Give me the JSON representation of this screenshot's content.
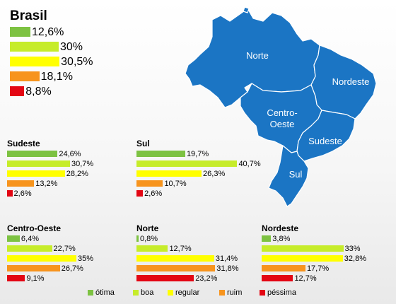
{
  "chart_data": [
    {
      "type": "bar",
      "title": "Brasil",
      "categories": [
        "ótima",
        "boa",
        "regular",
        "ruim",
        "péssima"
      ],
      "values": [
        12.6,
        30,
        30.5,
        18.1,
        8.8
      ],
      "labels": [
        "12,6%",
        "30%",
        "30,5%",
        "18,1%",
        "8,8%"
      ]
    },
    {
      "type": "bar",
      "title": "Sudeste",
      "categories": [
        "ótima",
        "boa",
        "regular",
        "ruim",
        "péssima"
      ],
      "values": [
        24.6,
        30.7,
        28.2,
        13.2,
        2.6
      ],
      "labels": [
        "24,6%",
        "30,7%",
        "28,2%",
        "13,2%",
        "2,6%"
      ]
    },
    {
      "type": "bar",
      "title": "Sul",
      "categories": [
        "ótima",
        "boa",
        "regular",
        "ruim",
        "péssima"
      ],
      "values": [
        19.7,
        40.7,
        26.3,
        10.7,
        2.6
      ],
      "labels": [
        "19,7%",
        "40,7%",
        "26,3%",
        "10,7%",
        "2,6%"
      ]
    },
    {
      "type": "bar",
      "title": "Centro-Oeste",
      "categories": [
        "ótima",
        "boa",
        "regular",
        "ruim",
        "péssima"
      ],
      "values": [
        6.4,
        22.7,
        35,
        26.7,
        9.1
      ],
      "labels": [
        "6,4%",
        "22,7%",
        "35%",
        "26,7%",
        "9,1%"
      ]
    },
    {
      "type": "bar",
      "title": "Norte",
      "categories": [
        "ótima",
        "boa",
        "regular",
        "ruim",
        "péssima"
      ],
      "values": [
        0.8,
        12.7,
        31.4,
        31.8,
        23.2
      ],
      "labels": [
        "0,8%",
        "12,7%",
        "31,4%",
        "31,8%",
        "23,2%"
      ]
    },
    {
      "type": "bar",
      "title": "Nordeste",
      "categories": [
        "ótima",
        "boa",
        "regular",
        "ruim",
        "péssima"
      ],
      "values": [
        3.8,
        33,
        32.8,
        17.7,
        12.7
      ],
      "labels": [
        "3,8%",
        "33%",
        "32,8%",
        "17,7%",
        "12,7%"
      ]
    }
  ],
  "legend": [
    {
      "label": "ótima",
      "color": "#7dc242"
    },
    {
      "label": "boa",
      "color": "#c6ec2a"
    },
    {
      "label": "regular",
      "color": "#ffff00"
    },
    {
      "label": "ruim",
      "color": "#f7941d"
    },
    {
      "label": "péssima",
      "color": "#e30613"
    }
  ],
  "map": {
    "fill_color": "#1b75c4",
    "region_labels": [
      {
        "id": "norte",
        "lines": [
          "Norte"
        ]
      },
      {
        "id": "nordeste",
        "lines": [
          "Nordeste"
        ]
      },
      {
        "id": "centro-oeste",
        "lines": [
          "Centro-",
          "Oeste"
        ]
      },
      {
        "id": "sudeste",
        "lines": [
          "Sudeste"
        ]
      },
      {
        "id": "sul",
        "lines": [
          "Sul"
        ]
      }
    ]
  }
}
